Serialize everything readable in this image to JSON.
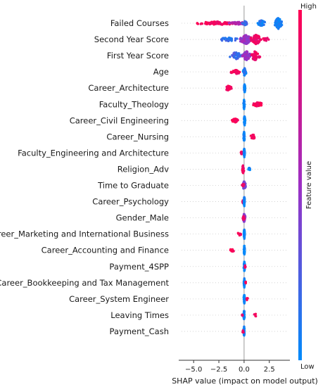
{
  "chart_data": {
    "type": "scatter",
    "subtype": "shap-beeswarm",
    "xlabel": "SHAP value (impact on model output)",
    "xlim": [
      -6.2,
      4.4
    ],
    "xticks": [
      -5.0,
      -2.5,
      0.0,
      2.5
    ],
    "xtick_labels": [
      "−5.0",
      "−2.5",
      "0.0",
      "2.5"
    ],
    "zero_line": true,
    "colorbar": {
      "label": "Feature value",
      "high_label": "High",
      "low_label": "Low",
      "high_color": "#ff0052",
      "low_color": "#008bfb"
    },
    "features": [
      {
        "name": "Failed Courses",
        "clusters": [
          {
            "x": -2.6,
            "spread": 2.2,
            "n": 90,
            "color": 0.95,
            "width": 2.4
          },
          {
            "x": -0.6,
            "spread": 0.9,
            "n": 40,
            "color": 0.6,
            "width": 2.0
          },
          {
            "x": 0.1,
            "spread": 0.3,
            "n": 30,
            "color": 0.2,
            "width": 3.0
          },
          {
            "x": 1.7,
            "spread": 0.35,
            "n": 40,
            "color": 0.1,
            "width": 4.5
          },
          {
            "x": 3.4,
            "spread": 0.35,
            "n": 90,
            "color": 0.05,
            "width": 8.0
          }
        ]
      },
      {
        "name": "Second Year Score",
        "clusters": [
          {
            "x": -1.6,
            "spread": 0.9,
            "n": 30,
            "color": 0.15,
            "width": 3.0
          },
          {
            "x": 0.2,
            "spread": 0.6,
            "n": 100,
            "color": 0.5,
            "width": 6.5
          },
          {
            "x": 1.2,
            "spread": 0.5,
            "n": 70,
            "color": 0.9,
            "width": 7.0
          },
          {
            "x": 2.2,
            "spread": 0.4,
            "n": 15,
            "color": 0.95,
            "width": 2.5
          }
        ]
      },
      {
        "name": "First Year Score",
        "clusters": [
          {
            "x": -0.8,
            "spread": 0.6,
            "n": 40,
            "color": 0.2,
            "width": 5.0
          },
          {
            "x": 0.2,
            "spread": 0.4,
            "n": 60,
            "color": 0.5,
            "width": 7.0
          },
          {
            "x": 1.1,
            "spread": 0.5,
            "n": 60,
            "color": 0.92,
            "width": 6.5
          }
        ]
      },
      {
        "name": "Age",
        "clusters": [
          {
            "x": -0.8,
            "spread": 0.5,
            "n": 30,
            "color": 0.95,
            "width": 3.0
          },
          {
            "x": 0.05,
            "spread": 0.15,
            "n": 50,
            "color": 0.1,
            "width": 6.0
          }
        ]
      },
      {
        "name": "Career_Architecture",
        "clusters": [
          {
            "x": -1.6,
            "spread": 0.35,
            "n": 30,
            "color": 0.97,
            "width": 3.5
          },
          {
            "x": 0.05,
            "spread": 0.06,
            "n": 50,
            "color": 0.03,
            "width": 7.0
          }
        ]
      },
      {
        "name": "Faculty_Theology",
        "clusters": [
          {
            "x": 1.4,
            "spread": 0.5,
            "n": 35,
            "color": 0.97,
            "width": 3.5
          },
          {
            "x": 0.0,
            "spread": 0.06,
            "n": 50,
            "color": 0.03,
            "width": 7.0
          }
        ]
      },
      {
        "name": "Career_Civil Engineering",
        "clusters": [
          {
            "x": -0.9,
            "spread": 0.3,
            "n": 25,
            "color": 0.97,
            "width": 3.0
          },
          {
            "x": 0.05,
            "spread": 0.06,
            "n": 50,
            "color": 0.03,
            "width": 7.0
          }
        ]
      },
      {
        "name": "Career_Nursing",
        "clusters": [
          {
            "x": 0.9,
            "spread": 0.3,
            "n": 25,
            "color": 0.97,
            "width": 3.0
          },
          {
            "x": 0.0,
            "spread": 0.06,
            "n": 50,
            "color": 0.03,
            "width": 7.0
          }
        ]
      },
      {
        "name": "Faculty_Engineering and Architecture",
        "clusters": [
          {
            "x": -0.2,
            "spread": 0.12,
            "n": 15,
            "color": 0.95,
            "width": 3.0
          },
          {
            "x": 0.02,
            "spread": 0.05,
            "n": 50,
            "color": 0.05,
            "width": 7.0
          }
        ]
      },
      {
        "name": "Religion_Adv",
        "clusters": [
          {
            "x": -0.1,
            "spread": 0.08,
            "n": 40,
            "color": 0.95,
            "width": 6.0
          },
          {
            "x": 0.5,
            "spread": 0.12,
            "n": 8,
            "color": 0.03,
            "width": 2.0
          }
        ]
      },
      {
        "name": "Time to Graduate",
        "clusters": [
          {
            "x": 0.0,
            "spread": 0.15,
            "n": 50,
            "color": 0.35,
            "width": 6.0
          },
          {
            "x": -0.1,
            "spread": 0.2,
            "n": 10,
            "color": 0.9,
            "width": 2.0
          }
        ]
      },
      {
        "name": "Career_Psychology",
        "clusters": [
          {
            "x": -0.1,
            "spread": 0.12,
            "n": 12,
            "color": 0.95,
            "width": 2.5
          },
          {
            "x": 0.02,
            "spread": 0.05,
            "n": 50,
            "color": 0.03,
            "width": 7.0
          }
        ]
      },
      {
        "name": "Gender_Male",
        "clusters": [
          {
            "x": 0.0,
            "spread": 0.12,
            "n": 50,
            "color": 0.5,
            "width": 6.0
          },
          {
            "x": -0.05,
            "spread": 0.08,
            "n": 15,
            "color": 0.95,
            "width": 3.0
          }
        ]
      },
      {
        "name": "Career_Marketing and International Business",
        "clusters": [
          {
            "x": -0.5,
            "spread": 0.2,
            "n": 10,
            "color": 0.95,
            "width": 2.5
          },
          {
            "x": 0.02,
            "spread": 0.05,
            "n": 50,
            "color": 0.03,
            "width": 7.0
          }
        ]
      },
      {
        "name": "Career_Accounting and Finance",
        "clusters": [
          {
            "x": -1.2,
            "spread": 0.2,
            "n": 15,
            "color": 0.97,
            "width": 3.0
          },
          {
            "x": 0.02,
            "spread": 0.05,
            "n": 50,
            "color": 0.03,
            "width": 7.0
          }
        ]
      },
      {
        "name": "Payment_4SPP",
        "clusters": [
          {
            "x": 0.02,
            "spread": 0.06,
            "n": 50,
            "color": 0.05,
            "width": 7.0
          },
          {
            "x": 0.1,
            "spread": 0.05,
            "n": 6,
            "color": 0.9,
            "width": 2.0
          }
        ]
      },
      {
        "name": "Career_Bookkeeping and Tax Management",
        "clusters": [
          {
            "x": 0.02,
            "spread": 0.05,
            "n": 50,
            "color": 0.03,
            "width": 7.0
          },
          {
            "x": 0.15,
            "spread": 0.05,
            "n": 6,
            "color": 0.95,
            "width": 2.0
          }
        ]
      },
      {
        "name": "Career_System Engineer",
        "clusters": [
          {
            "x": 0.02,
            "spread": 0.05,
            "n": 50,
            "color": 0.03,
            "width": 7.0
          },
          {
            "x": 0.3,
            "spread": 0.08,
            "n": 6,
            "color": 0.95,
            "width": 2.0
          }
        ]
      },
      {
        "name": "Leaving Times",
        "clusters": [
          {
            "x": 0.0,
            "spread": 0.05,
            "n": 50,
            "color": 0.05,
            "width": 7.0
          },
          {
            "x": -0.2,
            "spread": 0.1,
            "n": 6,
            "color": 0.9,
            "width": 2.0
          },
          {
            "x": 1.1,
            "spread": 0.2,
            "n": 4,
            "color": 0.95,
            "width": 2.0
          }
        ]
      },
      {
        "name": "Payment_Cash",
        "clusters": [
          {
            "x": 0.0,
            "spread": 0.05,
            "n": 50,
            "color": 0.05,
            "width": 7.0
          },
          {
            "x": -0.1,
            "spread": 0.08,
            "n": 8,
            "color": 0.9,
            "width": 2.5
          }
        ]
      }
    ]
  }
}
